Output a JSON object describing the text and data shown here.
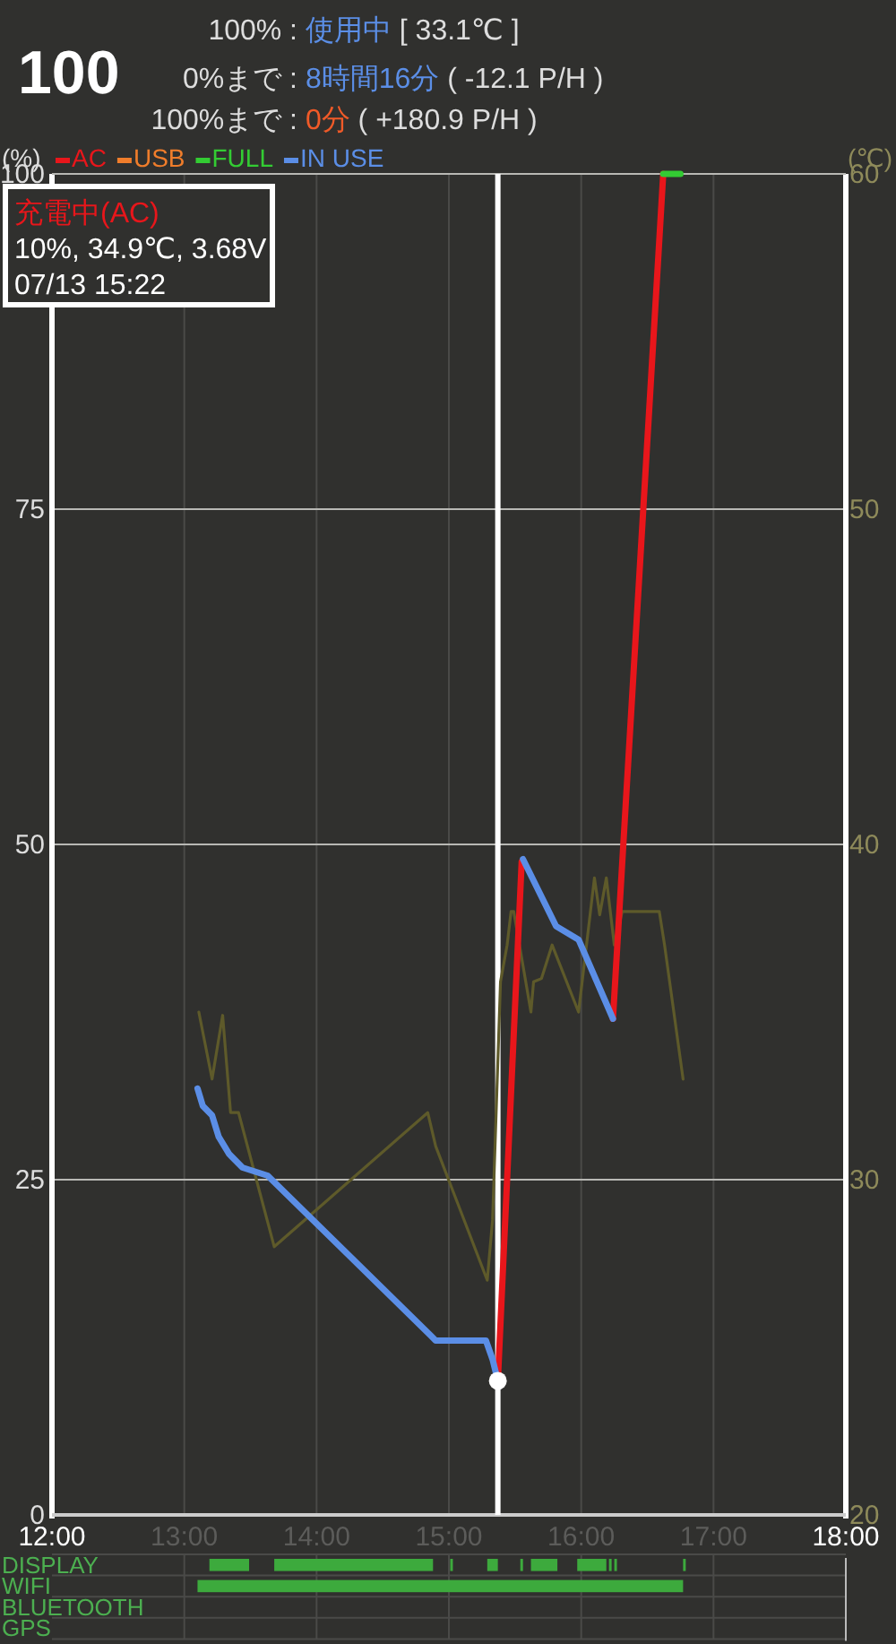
{
  "chart_data": [
    {
      "type": "line",
      "title": "100",
      "annotations": [
        "100% : 使用中 [ 33.1℃ ]",
        "0%まで : 8時間16分 ( -12.1 P/H )",
        "100%まで : 0分 ( +180.9 P/H )",
        "充電中(AC)",
        "10%, 34.9℃, 3.68V",
        "07/13 15:22"
      ],
      "ylabel": "(%)",
      "y2label": "(℃)",
      "xlim": [
        12,
        18
      ],
      "xticks": [
        {
          "value": 12,
          "label": "12:00"
        },
        {
          "value": 13,
          "label": "13:00"
        },
        {
          "value": 14,
          "label": "14:00"
        },
        {
          "value": 15,
          "label": "15:00"
        },
        {
          "value": 16,
          "label": "16:00"
        },
        {
          "value": 17,
          "label": "17:00"
        },
        {
          "value": 18,
          "label": "18:00"
        }
      ],
      "ylim": [
        0,
        100
      ],
      "yticks": [
        0,
        25,
        50,
        75,
        100
      ],
      "y2lim": [
        20,
        60
      ],
      "y2ticks": [
        20,
        30,
        40,
        50,
        60
      ],
      "grid": true,
      "legend": "top left",
      "ref_lines": [
        {
          "axis": "x",
          "value": 15.37,
          "color": "#ffffff"
        }
      ],
      "series": [
        {
          "name": "AC",
          "color": "#e8161b",
          "x": [
            15.37,
            15.55
          ],
          "values": [
            10,
            48.7
          ]
        },
        {
          "color": "#e8161b",
          "x": [
            16.24,
            16.62
          ],
          "values": [
            37.0,
            100
          ]
        },
        {
          "name": "USB",
          "color": "#f07d2b"
        },
        {
          "name": "FULL",
          "color": "#33cc33",
          "x": [
            16.62,
            16.75
          ],
          "values": [
            100,
            100
          ]
        },
        {
          "name": "IN USE",
          "color": "#5b8ee6",
          "x": [
            13.1,
            13.14,
            13.21,
            13.26,
            13.34,
            13.44,
            13.63,
            14.86,
            14.9,
            15.28,
            15.33,
            15.37
          ],
          "values": [
            31.8,
            30.5,
            29.8,
            28.2,
            26.9,
            25.9,
            25.3,
            13.4,
            13.0,
            13.0,
            11.6,
            10
          ]
        },
        {
          "color": "#5b8ee6",
          "x": [
            15.56,
            15.81,
            15.98,
            16.24
          ],
          "values": [
            48.9,
            43.9,
            42.9,
            37.0
          ]
        },
        {
          "type": "scatter",
          "color": "#ffffff",
          "x": [
            15.37
          ],
          "values": [
            10
          ]
        },
        {
          "axis": "y2",
          "color": "#5e5a2a",
          "x": [
            13.11,
            13.21,
            13.29,
            13.35,
            13.41,
            13.68,
            14.84,
            14.9,
            15.29,
            15.33,
            15.39,
            15.44,
            15.47,
            15.49,
            15.62,
            15.64,
            15.7,
            15.78,
            15.98,
            16.1,
            16.14,
            16.19,
            16.25,
            16.31,
            16.59,
            16.63,
            16.77
          ],
          "values": [
            35.0,
            33.0,
            34.9,
            32.0,
            32.0,
            28.0,
            32.0,
            31.0,
            27.0,
            28.8,
            35.9,
            37.0,
            38.0,
            38.0,
            35.0,
            35.9,
            36.0,
            37.0,
            35.0,
            39.0,
            37.9,
            39.0,
            37.0,
            38.0,
            38.0,
            37.0,
            33.0
          ]
        }
      ]
    },
    {
      "type": "bar",
      "orientation": "horizontal",
      "categories": [
        "DISPLAY",
        "WIFI",
        "BLUETOOTH",
        "GPS"
      ],
      "xlim": [
        12,
        18
      ],
      "xticks": [
        13,
        14,
        15,
        16,
        17
      ],
      "tick_labels": "y",
      "grid": true,
      "series": [
        {
          "color": "#3daa3d",
          "base": [
            13.19,
            13.1,
            null,
            null
          ],
          "values": [
            0.3,
            3.67,
            null,
            null
          ]
        },
        {
          "color": "#3daa3d",
          "base": [
            13.68,
            null,
            null,
            null
          ],
          "values": [
            1.2,
            null,
            null,
            null
          ]
        },
        {
          "color": "#3daa3d",
          "base": [
            15.01,
            null,
            null,
            null
          ],
          "values": [
            0.02,
            null,
            null,
            null
          ]
        },
        {
          "color": "#3daa3d",
          "base": [
            15.29,
            null,
            null,
            null
          ],
          "values": [
            0.08,
            null,
            null,
            null
          ]
        },
        {
          "color": "#3daa3d",
          "base": [
            15.54,
            null,
            null,
            null
          ],
          "values": [
            0.02,
            null,
            null,
            null
          ]
        },
        {
          "color": "#3daa3d",
          "base": [
            15.62,
            null,
            null,
            null
          ],
          "values": [
            0.2,
            null,
            null,
            null
          ]
        },
        {
          "color": "#3daa3d",
          "base": [
            15.97,
            null,
            null,
            null
          ],
          "values": [
            0.22,
            null,
            null,
            null
          ]
        },
        {
          "color": "#3daa3d",
          "base": [
            16.21,
            null,
            null,
            null
          ],
          "values": [
            0.02,
            null,
            null,
            null
          ]
        },
        {
          "color": "#3daa3d",
          "base": [
            16.25,
            null,
            null,
            null
          ],
          "values": [
            0.02,
            null,
            null,
            null
          ]
        },
        {
          "color": "#3daa3d",
          "base": [
            16.77,
            null,
            null,
            null
          ],
          "values": [
            0.02,
            null,
            null,
            null
          ]
        }
      ]
    }
  ]
}
